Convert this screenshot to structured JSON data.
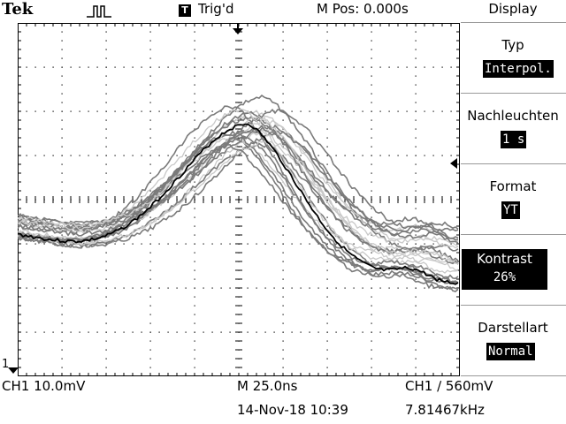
{
  "header": {
    "brand": "Tek",
    "trigger_badge": "T",
    "trigger_status": "Trig'd",
    "m_pos": "M Pos: 0.000s"
  },
  "readouts": {
    "ch1_scale": "CH1  10.0mV",
    "time_scale": "M 25.0ns",
    "trigger": "CH1  ∕  560mV",
    "date": "14-Nov-18 10:39",
    "frequency": "7.81467kHz"
  },
  "markers": {
    "channel_ground": "1"
  },
  "menu": {
    "title": "Display",
    "items": [
      {
        "label": "Typ",
        "value": "Interpol."
      },
      {
        "label": "Nachleuchten",
        "value": "1 s"
      },
      {
        "label": "Format",
        "value": "YT"
      },
      {
        "label": "Kontrast",
        "value": "26%"
      },
      {
        "label": "Darstellart",
        "value": "Normal"
      }
    ]
  },
  "colors": {
    "background": "#ffffff",
    "grid": "#000000",
    "trace_main": "#000000",
    "trace_persist_dark": "#7a7a7a",
    "trace_persist_light": "#c8c8c8"
  }
}
